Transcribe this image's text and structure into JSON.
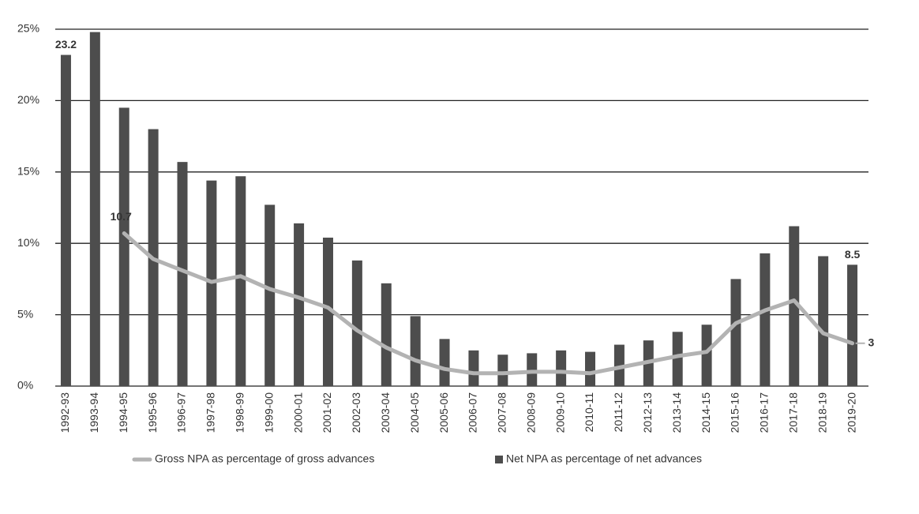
{
  "chart_data": {
    "type": "bar_line",
    "categories": [
      "1992-93",
      "1993-94",
      "1994-95",
      "1995-96",
      "1996-97",
      "1997-98",
      "1998-99",
      "1999-00",
      "2000-01",
      "2001-02",
      "2002-03",
      "2003-04",
      "2004-05",
      "2005-06",
      "2006-07",
      "2007-08",
      "2008-09",
      "2009-10",
      "2010-11",
      "2011-12",
      "2012-13",
      "2013-14",
      "2014-15",
      "2015-16",
      "2016-17",
      "2017-18",
      "2018-19",
      "2019-20"
    ],
    "series": [
      {
        "name": "Gross NPA as percentage of gross advances",
        "kind": "line",
        "color": "#b3b3b3",
        "values": [
          null,
          null,
          10.7,
          8.9,
          8.1,
          7.3,
          7.7,
          6.8,
          6.2,
          5.5,
          3.9,
          2.7,
          1.8,
          1.2,
          0.9,
          0.9,
          1.0,
          1.0,
          0.9,
          1.3,
          1.7,
          2.1,
          2.4,
          4.4,
          5.3,
          6.0,
          3.7,
          3
        ],
        "value_labels": [
          null,
          null,
          "10.7",
          null,
          null,
          null,
          null,
          null,
          null,
          null,
          null,
          null,
          null,
          null,
          null,
          null,
          null,
          null,
          null,
          null,
          null,
          null,
          null,
          null,
          null,
          null,
          null,
          "3"
        ]
      },
      {
        "name": "Net NPA as percentage of net advances",
        "kind": "bar",
        "color": "#4d4d4d",
        "values": [
          23.2,
          24.8,
          19.5,
          18.0,
          15.7,
          14.4,
          14.7,
          12.7,
          11.4,
          10.4,
          8.8,
          7.2,
          4.9,
          3.3,
          2.5,
          2.2,
          2.3,
          2.5,
          2.4,
          2.9,
          3.2,
          3.8,
          4.3,
          7.5,
          9.3,
          11.2,
          9.1,
          8.5
        ],
        "value_labels": [
          "23.2",
          null,
          null,
          null,
          null,
          null,
          null,
          null,
          null,
          null,
          null,
          null,
          null,
          null,
          null,
          null,
          null,
          null,
          null,
          null,
          null,
          null,
          null,
          null,
          null,
          null,
          null,
          "8.5"
        ]
      }
    ],
    "ylim": [
      0,
      25
    ],
    "yticks": [
      {
        "value": 0,
        "label": "0%"
      },
      {
        "value": 5,
        "label": "5%"
      },
      {
        "value": 10,
        "label": "10%"
      },
      {
        "value": 15,
        "label": "15%"
      },
      {
        "value": 20,
        "label": "20%"
      },
      {
        "value": 25,
        "label": "25%"
      }
    ],
    "grid": true
  }
}
